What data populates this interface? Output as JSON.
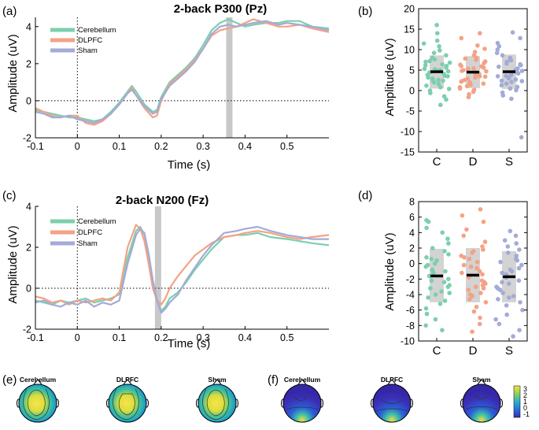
{
  "panels": {
    "a": "(a)",
    "b": "(b)",
    "c": "(c)",
    "d": "(d)",
    "e": "(e)",
    "f": "(f)"
  },
  "colors": {
    "Cerebellum": "#7ccfae",
    "DLPFC": "#f4a285",
    "Sham": "#a3abd6",
    "shade": "#c8c8c8"
  },
  "topo": {
    "labels": [
      "Cerebellum",
      "DLPFC",
      "Sham"
    ],
    "colorbar_ticks": [
      "3",
      "2",
      "1",
      "0",
      "-1"
    ]
  },
  "chart_data": [
    {
      "id": "a",
      "type": "line",
      "title": "2-back P300 (Pz)",
      "xlabel": "Time (s)",
      "ylabel": "Amplitude (uV)",
      "xlim": [
        -0.1,
        0.6
      ],
      "ylim": [
        -2,
        4.5
      ],
      "xticks": [
        -0.1,
        0,
        0.1,
        0.2,
        0.3,
        0.4,
        0.5
      ],
      "xticklabels": [
        "-0.1",
        "0",
        "0.1",
        "0.2",
        "0.3",
        "0.4",
        "0.5"
      ],
      "yticks": [
        -2,
        0,
        2,
        4
      ],
      "yticklabels": [
        "-2",
        "0",
        "2",
        "4"
      ],
      "shaded_window": [
        0.355,
        0.37
      ],
      "legend": [
        "Cerebellum",
        "DLPFC",
        "Sham"
      ],
      "series": [
        {
          "name": "Cerebellum",
          "x": [
            -0.1,
            -0.08,
            -0.06,
            -0.04,
            -0.02,
            0,
            0.02,
            0.04,
            0.06,
            0.08,
            0.1,
            0.12,
            0.13,
            0.14,
            0.16,
            0.18,
            0.19,
            0.2,
            0.22,
            0.24,
            0.26,
            0.28,
            0.3,
            0.32,
            0.34,
            0.36,
            0.38,
            0.4,
            0.42,
            0.45,
            0.48,
            0.5,
            0.53,
            0.56,
            0.6
          ],
          "y": [
            -0.5,
            -0.6,
            -0.7,
            -0.8,
            -0.9,
            -0.9,
            -1.0,
            -1.1,
            -1.0,
            -0.6,
            -0.1,
            0.5,
            0.8,
            0.5,
            -0.2,
            -0.6,
            -0.5,
            0.2,
            1.0,
            1.4,
            1.8,
            2.3,
            3.0,
            3.8,
            4.2,
            4.4,
            4.2,
            4.0,
            4.1,
            4.2,
            4.2,
            4.3,
            4.3,
            4.0,
            3.9
          ]
        },
        {
          "name": "DLPFC",
          "x": [
            -0.1,
            -0.08,
            -0.06,
            -0.04,
            -0.02,
            0,
            0.02,
            0.04,
            0.06,
            0.08,
            0.1,
            0.12,
            0.13,
            0.14,
            0.16,
            0.18,
            0.19,
            0.2,
            0.22,
            0.24,
            0.26,
            0.28,
            0.3,
            0.32,
            0.34,
            0.36,
            0.38,
            0.4,
            0.42,
            0.45,
            0.48,
            0.5,
            0.53,
            0.56,
            0.6
          ],
          "y": [
            -0.4,
            -0.6,
            -0.8,
            -0.9,
            -0.8,
            -0.8,
            -1.2,
            -1.3,
            -1.1,
            -0.7,
            -0.2,
            0.4,
            0.7,
            0.3,
            -0.4,
            -0.9,
            -0.8,
            0.0,
            0.9,
            1.3,
            1.7,
            2.2,
            2.8,
            3.5,
            3.8,
            3.9,
            4.0,
            4.2,
            4.4,
            4.2,
            4.0,
            4.0,
            4.1,
            3.9,
            3.7
          ]
        },
        {
          "name": "Sham",
          "x": [
            -0.1,
            -0.08,
            -0.06,
            -0.04,
            -0.02,
            0,
            0.02,
            0.04,
            0.06,
            0.08,
            0.1,
            0.12,
            0.13,
            0.14,
            0.16,
            0.18,
            0.19,
            0.2,
            0.22,
            0.24,
            0.26,
            0.28,
            0.3,
            0.32,
            0.34,
            0.36,
            0.38,
            0.4,
            0.42,
            0.45,
            0.48,
            0.5,
            0.53,
            0.56,
            0.6
          ],
          "y": [
            -0.6,
            -0.7,
            -0.9,
            -0.9,
            -0.8,
            -1.0,
            -1.1,
            -1.2,
            -1.0,
            -0.7,
            -0.2,
            0.4,
            0.6,
            0.3,
            -0.3,
            -0.7,
            -0.6,
            0.1,
            0.8,
            1.2,
            1.6,
            2.1,
            2.8,
            3.6,
            4.0,
            4.1,
            4.0,
            4.1,
            4.2,
            4.3,
            4.1,
            4.2,
            4.1,
            4.0,
            3.8
          ]
        }
      ]
    },
    {
      "id": "b",
      "type": "scatter",
      "xlabel": "",
      "ylabel": "Amplitude (uV)",
      "ylim": [
        -15,
        20
      ],
      "yticks": [
        -15,
        -10,
        -5,
        0,
        5,
        10,
        15,
        20
      ],
      "yticklabels": [
        "-15",
        "-10",
        "-5",
        "0",
        "5",
        "10",
        "15",
        "20"
      ],
      "categories": [
        "C",
        "D",
        "S"
      ],
      "groups": [
        {
          "name": "C",
          "mean": 4.6,
          "sd_box": [
            0.5,
            8.6
          ],
          "points": [
            16.0,
            14.0,
            12.2,
            11.5,
            10.8,
            9.8,
            9.2,
            8.6,
            8.0,
            7.6,
            7.2,
            6.8,
            6.4,
            6.0,
            5.6,
            5.3,
            5.0,
            4.7,
            4.4,
            4.1,
            3.8,
            3.5,
            3.2,
            2.9,
            2.6,
            2.3,
            2.0,
            1.6,
            1.2,
            0.8,
            0.4,
            0.0,
            -0.6,
            -1.4,
            -2.2,
            -3.5,
            6.2,
            4.9,
            3.6,
            2.4,
            7.0,
            5.2
          ]
        },
        {
          "name": "D",
          "mean": 4.5,
          "sd_box": [
            0.6,
            8.4
          ],
          "points": [
            14.0,
            12.8,
            11.0,
            10.2,
            9.4,
            8.6,
            8.0,
            7.5,
            7.1,
            6.7,
            6.3,
            5.9,
            5.6,
            5.3,
            5.0,
            4.7,
            4.4,
            4.1,
            3.8,
            3.5,
            3.2,
            2.9,
            2.6,
            2.3,
            2.0,
            1.7,
            1.4,
            1.1,
            0.8,
            0.5,
            0.2,
            -0.3,
            -0.9,
            -1.6,
            6.0,
            4.8,
            3.4,
            2.2,
            7.8,
            5.4
          ]
        },
        {
          "name": "S",
          "mean": 4.6,
          "sd_box": [
            0.4,
            8.8
          ],
          "points": [
            14.2,
            12.8,
            11.6,
            10.8,
            10.0,
            9.2,
            8.6,
            8.0,
            7.5,
            7.0,
            6.6,
            6.2,
            5.8,
            5.4,
            5.1,
            4.8,
            4.5,
            4.2,
            3.9,
            3.6,
            3.3,
            3.0,
            2.7,
            2.4,
            2.1,
            1.7,
            1.3,
            0.9,
            0.5,
            0.1,
            -0.5,
            -1.2,
            -2.0,
            -11.4,
            6.4,
            5.0,
            3.5,
            2.3,
            7.4
          ]
        }
      ]
    },
    {
      "id": "c",
      "type": "line",
      "title": "2-back N200 (Fz)",
      "xlabel": "Time (s)",
      "ylabel": "Amplitude (uV)",
      "xlim": [
        -0.1,
        0.6
      ],
      "ylim": [
        -2,
        4
      ],
      "xticks": [
        -0.1,
        0,
        0.1,
        0.2,
        0.3,
        0.4,
        0.5
      ],
      "xticklabels": [
        "-0.1",
        "0",
        "0.1",
        "0.2",
        "0.3",
        "0.4",
        "0.5"
      ],
      "yticks": [
        -2,
        0,
        2,
        4
      ],
      "yticklabels": [
        "-2",
        "0",
        "2",
        "4"
      ],
      "shaded_window": [
        0.185,
        0.2
      ],
      "legend": [
        "Cerebellum",
        "DLPFC",
        "Sham"
      ],
      "series": [
        {
          "name": "Cerebellum",
          "x": [
            -0.1,
            -0.08,
            -0.06,
            -0.04,
            -0.02,
            0,
            0.02,
            0.04,
            0.06,
            0.08,
            0.1,
            0.12,
            0.14,
            0.15,
            0.16,
            0.17,
            0.18,
            0.19,
            0.2,
            0.21,
            0.22,
            0.24,
            0.26,
            0.28,
            0.3,
            0.32,
            0.35,
            0.38,
            0.4,
            0.43,
            0.46,
            0.5,
            0.53,
            0.56,
            0.6
          ],
          "y": [
            -0.6,
            -0.7,
            -0.8,
            -0.6,
            -0.7,
            -0.6,
            -0.5,
            -0.7,
            -0.6,
            -0.5,
            -0.3,
            1.5,
            2.8,
            3.0,
            2.6,
            1.5,
            0.3,
            -0.6,
            -1.1,
            -0.9,
            -0.5,
            -0.2,
            0.3,
            0.9,
            1.4,
            1.9,
            2.5,
            2.6,
            2.6,
            2.7,
            2.5,
            2.4,
            2.3,
            2.2,
            2.1
          ]
        },
        {
          "name": "DLPFC",
          "x": [
            -0.1,
            -0.08,
            -0.06,
            -0.04,
            -0.02,
            0,
            0.02,
            0.04,
            0.06,
            0.08,
            0.1,
            0.12,
            0.14,
            0.15,
            0.16,
            0.17,
            0.18,
            0.19,
            0.2,
            0.21,
            0.22,
            0.24,
            0.26,
            0.28,
            0.3,
            0.32,
            0.35,
            0.38,
            0.4,
            0.43,
            0.46,
            0.5,
            0.53,
            0.56,
            0.6
          ],
          "y": [
            -0.4,
            -0.5,
            -0.7,
            -0.6,
            -0.8,
            -0.6,
            -0.7,
            -0.6,
            -0.5,
            -0.6,
            -0.2,
            2.0,
            3.1,
            2.9,
            2.3,
            1.2,
            0.0,
            -0.6,
            -0.8,
            -0.5,
            0.0,
            0.6,
            1.1,
            1.6,
            1.9,
            2.2,
            2.5,
            2.6,
            2.7,
            2.8,
            2.7,
            2.5,
            2.4,
            2.5,
            2.6
          ]
        },
        {
          "name": "Sham",
          "x": [
            -0.1,
            -0.08,
            -0.06,
            -0.04,
            -0.02,
            0,
            0.02,
            0.04,
            0.06,
            0.08,
            0.1,
            0.12,
            0.14,
            0.15,
            0.16,
            0.17,
            0.18,
            0.19,
            0.2,
            0.21,
            0.22,
            0.24,
            0.26,
            0.28,
            0.3,
            0.32,
            0.35,
            0.38,
            0.4,
            0.43,
            0.46,
            0.5,
            0.53,
            0.56,
            0.6
          ],
          "y": [
            -0.7,
            -0.6,
            -0.8,
            -0.9,
            -0.7,
            -0.8,
            -0.6,
            -0.9,
            -0.7,
            -0.8,
            -0.6,
            1.2,
            2.6,
            2.9,
            2.7,
            1.7,
            0.4,
            -0.6,
            -1.2,
            -1.0,
            -0.7,
            -0.3,
            0.4,
            1.0,
            1.6,
            2.1,
            2.7,
            2.8,
            2.9,
            3.0,
            2.8,
            2.6,
            2.5,
            2.4,
            2.4
          ]
        }
      ]
    },
    {
      "id": "d",
      "type": "scatter",
      "xlabel": "",
      "ylabel": "Amplitude (uV)",
      "ylim": [
        -10,
        8
      ],
      "yticks": [
        -10,
        -8,
        -6,
        -4,
        -2,
        0,
        2,
        4,
        6,
        8
      ],
      "yticklabels": [
        "-10",
        "-8",
        "-6",
        "-4",
        "-2",
        "0",
        "2",
        "4",
        "6",
        "8"
      ],
      "categories": [
        "C",
        "D",
        "S"
      ],
      "groups": [
        {
          "name": "C",
          "mean": -1.6,
          "sd_box": [
            -5.0,
            1.9
          ],
          "points": [
            5.6,
            5.4,
            4.6,
            4.0,
            3.2,
            2.6,
            2.0,
            1.6,
            1.2,
            0.8,
            0.4,
            0.0,
            -0.4,
            -0.8,
            -1.2,
            -1.6,
            -2.0,
            -2.4,
            -2.8,
            -3.2,
            -3.6,
            -4.0,
            -4.4,
            -4.8,
            -5.2,
            -5.8,
            -6.5,
            -7.2,
            -8.0,
            -8.6,
            -1.0,
            -2.2,
            -3.0,
            0.6,
            -0.2,
            -3.8
          ]
        },
        {
          "name": "D",
          "mean": -1.5,
          "sd_box": [
            -5.0,
            2.0
          ],
          "points": [
            7.0,
            6.2,
            5.4,
            4.4,
            3.6,
            2.8,
            2.2,
            1.8,
            1.4,
            1.0,
            0.6,
            0.2,
            -0.2,
            -0.6,
            -1.0,
            -1.4,
            -1.8,
            -2.2,
            -2.6,
            -3.0,
            -3.4,
            -3.8,
            -4.2,
            -4.6,
            -5.0,
            -5.6,
            -6.2,
            -7.0,
            -7.8,
            -8.8,
            -1.2,
            -2.4,
            -3.2,
            0.8,
            -0.4,
            -4.0,
            1.6,
            -2.8
          ]
        },
        {
          "name": "S",
          "mean": -1.7,
          "sd_box": [
            -5.0,
            1.6
          ],
          "points": [
            4.2,
            3.6,
            3.0,
            2.6,
            2.2,
            1.8,
            1.4,
            1.0,
            0.6,
            0.2,
            -0.2,
            -0.6,
            -1.0,
            -1.4,
            -1.8,
            -2.2,
            -2.6,
            -3.0,
            -3.4,
            -3.8,
            -4.2,
            -4.6,
            -5.0,
            -5.4,
            -6.0,
            -6.6,
            -7.2,
            -7.8,
            -8.6,
            -9.4,
            -1.2,
            -2.4,
            -3.2,
            0.4,
            -0.8,
            -4.4
          ]
        }
      ]
    }
  ]
}
